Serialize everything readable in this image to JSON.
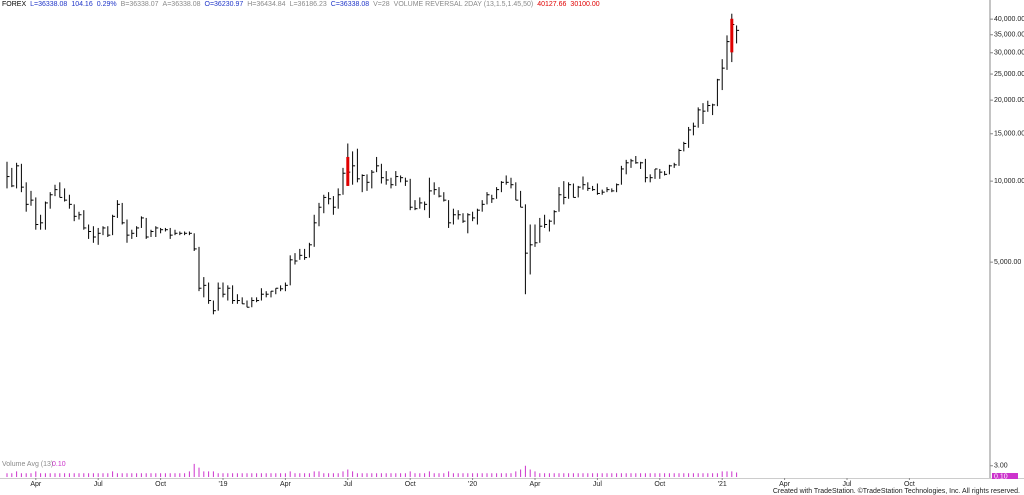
{
  "header": [
    {
      "text": "FOREX",
      "color": "#000000"
    },
    {
      "text": "L=36338.08",
      "color": "#1f35c8"
    },
    {
      "text": "104.16",
      "color": "#1f35c8"
    },
    {
      "text": "0.29%",
      "color": "#1f35c8"
    },
    {
      "text": "B=36338.07",
      "color": "#8a8a8a"
    },
    {
      "text": "A=36338.08",
      "color": "#8a8a8a"
    },
    {
      "text": "O=36230.97",
      "color": "#1f35c8"
    },
    {
      "text": "H=36434.84",
      "color": "#8a8a8a"
    },
    {
      "text": "L=36186.23",
      "color": "#8a8a8a"
    },
    {
      "text": "C=36338.08",
      "color": "#1f35c8"
    },
    {
      "text": "V=28",
      "color": "#8a8a8a"
    },
    {
      "text": "VOLUME REVERSAL 2DAY (13,1.5,1.45,50)",
      "color": "#8a8a8a"
    },
    {
      "text": "40127.66",
      "color": "#e00000"
    },
    {
      "text": "30100.00",
      "color": "#e00000"
    }
  ],
  "footer": "Created with TradeStation. ©TradeStation Technologies, Inc. All rights reserved.",
  "chart_data": {
    "type": "ohlc",
    "log_scale": true,
    "bar_color": "#000000",
    "reversal_color": "#e00000",
    "ylim": [
      960,
      44000
    ],
    "yticks": [
      {
        "value": 5000,
        "label": "5,000.00"
      },
      {
        "value": 10000,
        "label": "10,000.00"
      },
      {
        "value": 15000,
        "label": "15,000.00"
      },
      {
        "value": 20000,
        "label": "20,000.00"
      },
      {
        "value": 25000,
        "label": "25,000.00"
      },
      {
        "value": 30000,
        "label": "30,000.00"
      },
      {
        "value": 35000,
        "label": "35,000.00"
      },
      {
        "value": 40000,
        "label": "40,000.00"
      }
    ],
    "categories": [
      null,
      null,
      null,
      null,
      null,
      null,
      "Apr",
      null,
      null,
      null,
      null,
      null,
      null,
      null,
      null,
      null,
      null,
      null,
      null,
      "Jul",
      null,
      null,
      null,
      null,
      null,
      null,
      null,
      null,
      null,
      null,
      null,
      null,
      "Oct",
      null,
      null,
      null,
      null,
      null,
      null,
      null,
      null,
      null,
      null,
      null,
      null,
      "'19",
      null,
      null,
      null,
      null,
      null,
      null,
      null,
      null,
      null,
      null,
      null,
      null,
      "Apr",
      null,
      null,
      null,
      null,
      null,
      null,
      null,
      null,
      null,
      null,
      null,
      null,
      "Jul",
      null,
      null,
      null,
      null,
      null,
      null,
      null,
      null,
      null,
      null,
      null,
      null,
      "Oct",
      null,
      null,
      null,
      null,
      null,
      null,
      null,
      null,
      null,
      null,
      null,
      null,
      "'20",
      null,
      null,
      null,
      null,
      null,
      null,
      null,
      null,
      null,
      null,
      null,
      null,
      "Apr",
      null,
      null,
      null,
      null,
      null,
      null,
      null,
      null,
      null,
      null,
      null,
      null,
      "Jul",
      null,
      null,
      null,
      null,
      null,
      null,
      null,
      null,
      null,
      null,
      null,
      null,
      "Oct",
      null,
      null,
      null,
      null,
      null,
      null,
      null,
      null,
      null,
      null,
      null,
      null,
      "'21",
      null,
      null,
      null,
      null,
      null,
      null,
      null,
      null,
      null,
      null,
      null,
      null,
      "Apr",
      null,
      null,
      null,
      null,
      null,
      null,
      null,
      null,
      null,
      null,
      null,
      null,
      "Jul",
      null,
      null,
      null,
      null,
      null,
      null,
      null,
      null,
      null,
      null,
      null,
      null,
      "Oct",
      null,
      null
    ],
    "high": [
      11800,
      11200,
      11700,
      11600,
      9900,
      9200,
      8700,
      7500,
      8400,
      9100,
      9700,
      9900,
      9400,
      8900,
      8200,
      7700,
      7800,
      6900,
      6800,
      6700,
      6800,
      6800,
      7500,
      8500,
      8300,
      7200,
      6600,
      6800,
      7400,
      7300,
      6600,
      6800,
      6700,
      6700,
      6700,
      6600,
      6500,
      6500,
      6500,
      6400,
      5700,
      4400,
      4200,
      3600,
      4200,
      4200,
      4100,
      4100,
      3800,
      3700,
      3600,
      3700,
      3700,
      4000,
      3900,
      3900,
      4000,
      4100,
      4200,
      5300,
      5400,
      5600,
      5600,
      5900,
      7500,
      8300,
      8900,
      9100,
      8800,
      9400,
      11200,
      13800,
      12900,
      13200,
      10600,
      10600,
      11000,
      12300,
      11600,
      10900,
      10300,
      10900,
      10500,
      10300,
      10200,
      8500,
      8700,
      8400,
      10300,
      9900,
      9500,
      9100,
      8500,
      7900,
      7800,
      7600,
      7600,
      7700,
      7900,
      8500,
      9100,
      8900,
      9500,
      10000,
      10500,
      10300,
      9900,
      9200,
      8200,
      6900,
      6900,
      7300,
      7500,
      7200,
      7800,
      9500,
      10000,
      9900,
      9800,
      9600,
      10400,
      9900,
      9600,
      9800,
      9300,
      9500,
      9400,
      9800,
      11400,
      12000,
      12100,
      12400,
      11800,
      12100,
      10600,
      11100,
      11100,
      10900,
      11500,
      11700,
      13200,
      14000,
      15900,
      16500,
      18800,
      19500,
      19900,
      19400,
      24000,
      28400,
      34800,
      41900,
      37900,
      null,
      null,
      null,
      null,
      null,
      null,
      null,
      null,
      null,
      null,
      null,
      null,
      null,
      null,
      null,
      null,
      null,
      null,
      null,
      null,
      null,
      null,
      null,
      null,
      null,
      null,
      null,
      null,
      null,
      null,
      null,
      null,
      null,
      null,
      null,
      null,
      null,
      null
    ],
    "low": [
      9400,
      9500,
      9400,
      9100,
      7700,
      8100,
      6600,
      6600,
      6600,
      7900,
      8800,
      8700,
      8400,
      7900,
      7100,
      7200,
      6600,
      6100,
      5900,
      5800,
      6300,
      6200,
      6300,
      7300,
      6900,
      5900,
      6100,
      6200,
      6700,
      6100,
      6200,
      6200,
      6400,
      6500,
      6100,
      6300,
      6300,
      6300,
      6300,
      5500,
      3900,
      3700,
      3500,
      3200,
      3300,
      3700,
      3600,
      3500,
      3500,
      3500,
      3400,
      3400,
      3550,
      3600,
      3700,
      3700,
      3800,
      3900,
      3900,
      4100,
      4900,
      5100,
      5100,
      5200,
      5700,
      6800,
      7600,
      8200,
      7500,
      7900,
      8900,
      9600,
      9700,
      9900,
      9100,
      9200,
      9400,
      10800,
      9800,
      9700,
      9400,
      9600,
      9900,
      9600,
      7800,
      7800,
      7900,
      7800,
      7300,
      8900,
      8700,
      8400,
      6700,
      6900,
      7200,
      7000,
      6400,
      7100,
      6900,
      7700,
      8200,
      8300,
      8600,
      9100,
      9700,
      9400,
      8500,
      8000,
      3800,
      4500,
      5700,
      5900,
      6700,
      6500,
      6900,
      7700,
      8200,
      8600,
      8700,
      8700,
      9300,
      9200,
      9200,
      8900,
      8900,
      9100,
      9100,
      9100,
      9700,
      10600,
      11200,
      11600,
      11100,
      9900,
      9900,
      10200,
      10200,
      10500,
      10600,
      11200,
      11400,
      12900,
      13300,
      14800,
      15800,
      16300,
      18100,
      17600,
      19000,
      21800,
      25900,
      27700,
      32500,
      null,
      null,
      null,
      null,
      null,
      null,
      null,
      null,
      null,
      null,
      null,
      null,
      null,
      null,
      null,
      null,
      null,
      null,
      null,
      null,
      null,
      null,
      null,
      null,
      null,
      null,
      null,
      null,
      null,
      null,
      null,
      null,
      null,
      null,
      null,
      null,
      null,
      null
    ],
    "close": [
      10400,
      9600,
      11400,
      9500,
      8200,
      8500,
      6900,
      7000,
      8300,
      8900,
      9300,
      8700,
      8500,
      8200,
      7400,
      7500,
      6700,
      6500,
      6200,
      6400,
      6700,
      6300,
      7400,
      8200,
      7000,
      6300,
      6400,
      6700,
      7300,
      6200,
      6500,
      6700,
      6600,
      6600,
      6300,
      6400,
      6400,
      6400,
      6400,
      5600,
      4000,
      4100,
      3600,
      3300,
      4000,
      3800,
      4000,
      3600,
      3600,
      3500,
      3400,
      3600,
      3600,
      3800,
      3800,
      3900,
      4000,
      3980,
      4100,
      5100,
      5050,
      5300,
      5200,
      5800,
      7000,
      8000,
      8700,
      8600,
      8000,
      8900,
      10700,
      10800,
      11400,
      10200,
      10500,
      9900,
      10800,
      11400,
      10300,
      10100,
      9700,
      10400,
      10300,
      10000,
      8000,
      7900,
      8300,
      8200,
      9200,
      9300,
      8800,
      8500,
      7000,
      7500,
      7500,
      7100,
      7500,
      7300,
      7800,
      8200,
      8900,
      8600,
      9300,
      9900,
      9900,
      9700,
      8500,
      8000,
      5400,
      5800,
      5900,
      6800,
      6900,
      7100,
      7700,
      8900,
      8700,
      9700,
      8700,
      9500,
      9700,
      9400,
      9300,
      9000,
      9100,
      9300,
      9200,
      9700,
      11100,
      11700,
      11900,
      11700,
      11700,
      10300,
      10300,
      11100,
      10800,
      10600,
      11400,
      11500,
      13000,
      13800,
      15500,
      16000,
      18400,
      18200,
      19100,
      19200,
      23800,
      26300,
      33000,
      38200,
      36338.08,
      null,
      null,
      null,
      null,
      null,
      null,
      null,
      null,
      null,
      null,
      null,
      null,
      null,
      null,
      null,
      null,
      null,
      null,
      null,
      null,
      null,
      null,
      null,
      null,
      null,
      null,
      null,
      null,
      null,
      null,
      null,
      null,
      null,
      null,
      null,
      null,
      null,
      null
    ],
    "reversal_high": [
      null,
      null,
      null,
      null,
      null,
      null,
      null,
      null,
      null,
      null,
      null,
      null,
      null,
      null,
      null,
      null,
      null,
      null,
      null,
      null,
      null,
      null,
      null,
      null,
      null,
      null,
      null,
      null,
      null,
      null,
      null,
      null,
      null,
      null,
      null,
      null,
      null,
      null,
      null,
      null,
      null,
      null,
      null,
      null,
      null,
      null,
      null,
      null,
      null,
      null,
      null,
      null,
      null,
      null,
      null,
      null,
      null,
      null,
      null,
      null,
      null,
      null,
      null,
      null,
      null,
      null,
      null,
      null,
      null,
      null,
      null,
      12300,
      null,
      null,
      null,
      null,
      null,
      null,
      null,
      null,
      null,
      null,
      null,
      null,
      null,
      null,
      null,
      null,
      null,
      null,
      null,
      null,
      null,
      null,
      null,
      null,
      null,
      null,
      null,
      null,
      null,
      null,
      null,
      null,
      null,
      null,
      null,
      null,
      null,
      null,
      null,
      null,
      null,
      null,
      null,
      null,
      null,
      null,
      null,
      null,
      null,
      null,
      null,
      null,
      null,
      null,
      null,
      null,
      null,
      null,
      null,
      null,
      null,
      null,
      null,
      null,
      null,
      null,
      null,
      null,
      null,
      null,
      null,
      null,
      null,
      null,
      null,
      null,
      null,
      null,
      null,
      40127.66,
      null,
      null,
      null,
      null,
      null,
      null,
      null,
      null,
      null,
      null,
      null,
      null,
      null,
      null,
      null,
      null,
      null,
      null,
      null,
      null,
      null,
      null,
      null,
      null,
      null,
      null,
      null,
      null,
      null,
      null,
      null,
      null,
      null,
      null,
      null,
      null,
      null,
      null,
      null
    ],
    "reversal_low": [
      null,
      null,
      null,
      null,
      null,
      null,
      null,
      null,
      null,
      null,
      null,
      null,
      null,
      null,
      null,
      null,
      null,
      null,
      null,
      null,
      null,
      null,
      null,
      null,
      null,
      null,
      null,
      null,
      null,
      null,
      null,
      null,
      null,
      null,
      null,
      null,
      null,
      null,
      null,
      null,
      null,
      null,
      null,
      null,
      null,
      null,
      null,
      null,
      null,
      null,
      null,
      null,
      null,
      null,
      null,
      null,
      null,
      null,
      null,
      null,
      null,
      null,
      null,
      null,
      null,
      null,
      null,
      null,
      null,
      null,
      null,
      9600,
      null,
      null,
      null,
      null,
      null,
      null,
      null,
      null,
      null,
      null,
      null,
      null,
      null,
      null,
      null,
      null,
      null,
      null,
      null,
      null,
      null,
      null,
      null,
      null,
      null,
      null,
      null,
      null,
      null,
      null,
      null,
      null,
      null,
      null,
      null,
      null,
      null,
      null,
      null,
      null,
      null,
      null,
      null,
      null,
      null,
      null,
      null,
      null,
      null,
      null,
      null,
      null,
      null,
      null,
      null,
      null,
      null,
      null,
      null,
      null,
      null,
      null,
      null,
      null,
      null,
      null,
      null,
      null,
      null,
      null,
      null,
      null,
      null,
      null,
      null,
      null,
      null,
      null,
      null,
      30100,
      null,
      null,
      null,
      null,
      null,
      null,
      null,
      null,
      null,
      null,
      null,
      null,
      null,
      null,
      null,
      null,
      null,
      null,
      null,
      null,
      null,
      null,
      null,
      null,
      null,
      null,
      null,
      null,
      null,
      null,
      null,
      null,
      null,
      null,
      null,
      null,
      null,
      null,
      null
    ],
    "volume": [
      1,
      1,
      1.5,
      1,
      1,
      1,
      1.5,
      1,
      1,
      1,
      1,
      1,
      1,
      1,
      1,
      1,
      1,
      1,
      1,
      1,
      1,
      1,
      1.5,
      1,
      1,
      1,
      1,
      1,
      1,
      1,
      1,
      1,
      1,
      1,
      1,
      1,
      1,
      1,
      1.5,
      3.5,
      2.5,
      1.5,
      1.5,
      1.5,
      1,
      1,
      1,
      1,
      1,
      1,
      1,
      1,
      1,
      1,
      1,
      1,
      1,
      1,
      1,
      1.5,
      1,
      1,
      1,
      1,
      1.5,
      1.5,
      1,
      1,
      1,
      1,
      1.5,
      2,
      1.5,
      1,
      1,
      1,
      1,
      1,
      1,
      1,
      1,
      1,
      1,
      1,
      1.5,
      1,
      1,
      1,
      1.5,
      1,
      1,
      1,
      1.5,
      1,
      1,
      1,
      1,
      1,
      1,
      1,
      1,
      1,
      1,
      1,
      1,
      1,
      1.5,
      2,
      3,
      2,
      1.5,
      1,
      1,
      1,
      1,
      1,
      1,
      1,
      1,
      1,
      1,
      1,
      1,
      1,
      1,
      1,
      1,
      1,
      1,
      1,
      1,
      1,
      1,
      1,
      1,
      1,
      1,
      1,
      1,
      1,
      1,
      1,
      1,
      1,
      1,
      1,
      1,
      1,
      1,
      1.5,
      1.5,
      1.5,
      1.2,
      null,
      null,
      null,
      null,
      null,
      null,
      null,
      null,
      null,
      null,
      null,
      null,
      null,
      null,
      null,
      null,
      null,
      null,
      null,
      null,
      null,
      null,
      null,
      null,
      null,
      null,
      null,
      null,
      null,
      null,
      null,
      null,
      null,
      null,
      null,
      null,
      null,
      null
    ],
    "volume_panel": {
      "label": "Volume Avg (13)",
      "value_label": "0.10",
      "color": "#cc33cc",
      "ylim": [
        0,
        4
      ],
      "yticks": [
        {
          "value": 3,
          "label": "3.00"
        }
      ]
    }
  }
}
